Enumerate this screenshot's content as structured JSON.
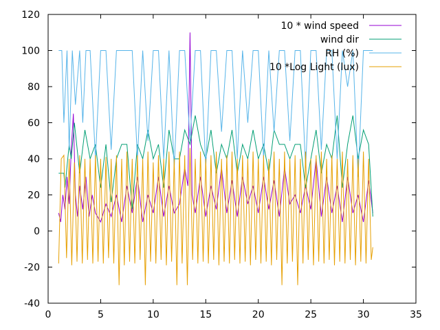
{
  "chart_data": {
    "type": "line",
    "title": "",
    "xlabel": "",
    "ylabel": "",
    "xlim": [
      0,
      35
    ],
    "ylim": [
      -40,
      120
    ],
    "xticks": [
      0,
      5,
      10,
      15,
      20,
      25,
      30,
      35
    ],
    "yticks": [
      -40,
      -20,
      0,
      20,
      40,
      60,
      80,
      100,
      120
    ],
    "grid": false,
    "legend_position": "top-right",
    "series": [
      {
        "name": "10 * wind speed",
        "color": "#9400d3",
        "x": [
          1.0,
          1.2,
          1.4,
          1.6,
          1.8,
          2.0,
          2.2,
          2.4,
          2.6,
          2.8,
          3.0,
          3.3,
          3.6,
          3.9,
          4.2,
          4.5,
          5.0,
          5.5,
          6.0,
          6.5,
          7.0,
          7.5,
          8.0,
          8.5,
          9.0,
          9.5,
          10.0,
          10.5,
          11.0,
          11.5,
          12.0,
          12.5,
          13.0,
          13.3,
          13.5,
          13.7,
          14.0,
          14.5,
          15.0,
          15.5,
          16.0,
          16.5,
          17.0,
          17.5,
          18.0,
          18.5,
          19.0,
          19.5,
          20.0,
          20.5,
          21.0,
          21.5,
          22.0,
          22.5,
          23.0,
          23.5,
          24.0,
          24.5,
          25.0,
          25.5,
          26.0,
          26.5,
          27.0,
          27.5,
          28.0,
          28.5,
          29.0,
          29.5,
          30.0,
          30.5,
          30.9
        ],
        "y": [
          10,
          5,
          20,
          12,
          30,
          15,
          45,
          65,
          20,
          8,
          25,
          12,
          30,
          8,
          20,
          10,
          5,
          15,
          8,
          20,
          5,
          25,
          10,
          30,
          5,
          20,
          10,
          30,
          8,
          25,
          10,
          15,
          35,
          25,
          110,
          20,
          10,
          30,
          8,
          25,
          12,
          35,
          10,
          28,
          8,
          30,
          15,
          25,
          10,
          30,
          12,
          28,
          8,
          35,
          15,
          20,
          10,
          25,
          12,
          40,
          8,
          30,
          10,
          25,
          5,
          30,
          10,
          20,
          5,
          28,
          10
        ]
      },
      {
        "name": "wind dir",
        "color": "#009e73",
        "x": [
          1.0,
          1.5,
          1.6,
          2.0,
          2.2,
          2.5,
          3.0,
          3.5,
          4.0,
          4.5,
          5.0,
          5.5,
          6.0,
          6.5,
          7.0,
          7.5,
          8.0,
          8.5,
          9.0,
          9.5,
          10.0,
          10.5,
          11.0,
          11.5,
          12.0,
          12.5,
          13.0,
          13.5,
          14.0,
          14.5,
          15.0,
          15.5,
          16.0,
          16.5,
          17.0,
          17.5,
          18.0,
          18.5,
          19.0,
          19.5,
          20.0,
          20.5,
          21.0,
          21.5,
          22.0,
          22.5,
          23.0,
          23.5,
          24.0,
          24.5,
          25.0,
          25.5,
          26.0,
          26.5,
          27.0,
          27.5,
          28.0,
          28.5,
          29.0,
          29.5,
          30.0,
          30.5,
          30.9
        ],
        "y": [
          32,
          32,
          24,
          48,
          40,
          60,
          32,
          56,
          40,
          48,
          24,
          48,
          16,
          40,
          48,
          48,
          12,
          48,
          40,
          56,
          40,
          48,
          24,
          56,
          40,
          40,
          56,
          48,
          64,
          48,
          40,
          56,
          32,
          48,
          40,
          56,
          32,
          48,
          40,
          56,
          40,
          48,
          32,
          56,
          48,
          48,
          40,
          48,
          48,
          24,
          40,
          56,
          32,
          48,
          40,
          64,
          24,
          48,
          64,
          40,
          56,
          48,
          8
        ]
      },
      {
        "name": "RH (%)",
        "color": "#56b4e9",
        "x": [
          1.0,
          1.3,
          1.5,
          1.8,
          2.0,
          2.3,
          2.6,
          3.0,
          3.3,
          3.6,
          4.0,
          4.5,
          5.0,
          5.3,
          5.5,
          6.0,
          6.5,
          7.0,
          7.5,
          8.0,
          8.5,
          9.0,
          9.5,
          10.0,
          10.5,
          11.0,
          11.5,
          12.0,
          12.5,
          13.0,
          13.5,
          14.0,
          14.5,
          15.0,
          15.5,
          16.0,
          16.5,
          17.0,
          17.5,
          18.0,
          18.5,
          19.0,
          19.5,
          20.0,
          20.5,
          21.0,
          21.5,
          22.0,
          22.5,
          23.0,
          23.5,
          24.0,
          24.5,
          25.0,
          25.5,
          26.0,
          26.5,
          27.0,
          27.5,
          28.0,
          28.5,
          29.0,
          29.5,
          30.0,
          30.5,
          30.9
        ],
        "y": [
          100,
          100,
          60,
          100,
          45,
          100,
          70,
          100,
          60,
          100,
          100,
          40,
          100,
          100,
          100,
          45,
          100,
          100,
          100,
          100,
          40,
          100,
          50,
          100,
          100,
          40,
          100,
          35,
          100,
          100,
          50,
          100,
          100,
          35,
          100,
          100,
          55,
          100,
          100,
          40,
          100,
          60,
          100,
          100,
          40,
          100,
          55,
          100,
          100,
          50,
          100,
          100,
          35,
          100,
          100,
          45,
          100,
          100,
          40,
          100,
          80,
          100,
          30,
          100,
          100,
          100
        ]
      },
      {
        "name": "10 *Log Light (lux)",
        "color": "#e69f00",
        "x": [
          1.0,
          1.25,
          1.5,
          1.75,
          2.0,
          2.25,
          2.5,
          2.75,
          3.0,
          3.25,
          3.5,
          3.75,
          4.0,
          4.25,
          4.5,
          4.75,
          5.0,
          5.25,
          5.5,
          5.75,
          6.0,
          6.25,
          6.5,
          6.75,
          7.0,
          7.25,
          7.5,
          7.75,
          8.0,
          8.25,
          8.5,
          8.75,
          9.0,
          9.25,
          9.5,
          9.75,
          10.0,
          10.25,
          10.5,
          10.75,
          11.0,
          11.25,
          11.5,
          11.75,
          12.0,
          12.25,
          12.5,
          12.75,
          13.0,
          13.25,
          13.5,
          13.75,
          14.0,
          14.25,
          14.5,
          14.75,
          15.0,
          15.25,
          15.5,
          15.75,
          16.0,
          16.25,
          16.5,
          16.75,
          17.0,
          17.25,
          17.5,
          17.75,
          18.0,
          18.25,
          18.5,
          18.75,
          19.0,
          19.25,
          19.5,
          19.75,
          20.0,
          20.25,
          20.5,
          20.75,
          21.0,
          21.25,
          21.5,
          21.75,
          22.0,
          22.25,
          22.5,
          22.75,
          23.0,
          23.25,
          23.5,
          23.75,
          24.0,
          24.25,
          24.5,
          24.75,
          25.0,
          25.25,
          25.5,
          25.75,
          26.0,
          26.25,
          26.5,
          26.75,
          27.0,
          27.25,
          27.5,
          27.75,
          28.0,
          28.25,
          28.5,
          28.75,
          29.0,
          29.25,
          29.5,
          29.75,
          30.0,
          30.25,
          30.5,
          30.75,
          30.9
        ],
        "y": [
          -18,
          40,
          42,
          -15,
          40,
          -19,
          38,
          -17,
          42,
          -18,
          40,
          -16,
          40,
          -18,
          42,
          -17,
          40,
          -18,
          41,
          -15,
          40,
          -18,
          42,
          -30,
          40,
          -19,
          44,
          -17,
          40,
          -18,
          42,
          -16,
          40,
          -30,
          44,
          -17,
          38,
          -18,
          42,
          -16,
          40,
          -19,
          44,
          -17,
          40,
          -30,
          44,
          -18,
          42,
          -30,
          46,
          -16,
          40,
          -18,
          44,
          -17,
          40,
          -18,
          42,
          -16,
          44,
          -19,
          40,
          -17,
          42,
          -18,
          44,
          -16,
          40,
          -18,
          42,
          -17,
          40,
          -19,
          44,
          -16,
          40,
          -18,
          42,
          -17,
          40,
          -19,
          44,
          -16,
          40,
          -30,
          44,
          -18,
          40,
          -17,
          42,
          -30,
          40,
          -18,
          44,
          -16,
          40,
          -19,
          42,
          -17,
          44,
          -18,
          40,
          -16,
          42,
          -19,
          40,
          -17,
          44,
          -18,
          40,
          -16,
          42,
          -19,
          40,
          -17,
          44,
          -18,
          40,
          -16,
          -9
        ]
      }
    ]
  }
}
